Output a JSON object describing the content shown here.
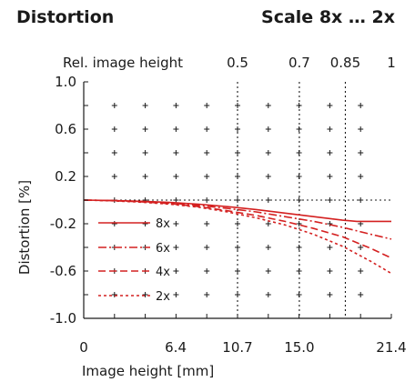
{
  "header": {
    "title": "Distortion",
    "scale": "Scale 8x … 2x"
  },
  "chart_data": {
    "type": "line",
    "title": "Distortion",
    "subtitle": "Scale 8x … 2x",
    "xlabel": "Image height [mm]",
    "ylabel": "Distortion [%]",
    "x2label": "Rel. image height",
    "xlim": [
      0,
      21.4
    ],
    "ylim": [
      -1.0,
      1.0
    ],
    "xticks": [
      0,
      6.4,
      10.7,
      15.0,
      21.4
    ],
    "xtick_labels": [
      "0",
      "6.4",
      "10.7",
      "15.0",
      "21.4"
    ],
    "yticks": [
      1.0,
      0.6,
      0.2,
      -0.2,
      -0.6,
      -1.0
    ],
    "ytick_labels": [
      "1.0",
      "0.6",
      "0.2",
      "-0.2",
      "-0.6",
      "-1.0"
    ],
    "x2ticks": [
      10.7,
      15.0,
      18.2,
      21.4
    ],
    "x2tick_labels": [
      "0.5",
      "0.7",
      "0.85",
      "1"
    ],
    "grid": "plus-markers",
    "legend_position": "bottom-left",
    "color": "#d42020",
    "series": [
      {
        "name": "8x",
        "dash": "solid",
        "x": [
          0,
          2,
          4,
          6,
          8,
          10,
          12,
          14,
          16,
          18,
          19,
          20,
          21.4
        ],
        "y": [
          0.0,
          -0.003,
          -0.01,
          -0.02,
          -0.035,
          -0.055,
          -0.08,
          -0.11,
          -0.14,
          -0.17,
          -0.18,
          -0.18,
          -0.18
        ]
      },
      {
        "name": "6x",
        "dash": "dashdot",
        "x": [
          0,
          2,
          4,
          6,
          8,
          10,
          12,
          14,
          16,
          18,
          20,
          21.4
        ],
        "y": [
          0.0,
          -0.004,
          -0.012,
          -0.025,
          -0.045,
          -0.07,
          -0.1,
          -0.14,
          -0.18,
          -0.23,
          -0.29,
          -0.33
        ]
      },
      {
        "name": "4x",
        "dash": "dashed",
        "x": [
          0,
          2,
          4,
          6,
          8,
          10,
          12,
          14,
          16,
          18,
          20,
          21.4
        ],
        "y": [
          0.0,
          -0.005,
          -0.015,
          -0.03,
          -0.055,
          -0.09,
          -0.13,
          -0.18,
          -0.24,
          -0.31,
          -0.41,
          -0.49
        ]
      },
      {
        "name": "2x",
        "dash": "dotted",
        "x": [
          0,
          2,
          4,
          6,
          8,
          10,
          12,
          14,
          16,
          18,
          20,
          21.4
        ],
        "y": [
          0.0,
          -0.006,
          -0.018,
          -0.035,
          -0.06,
          -0.1,
          -0.15,
          -0.21,
          -0.29,
          -0.39,
          -0.52,
          -0.62
        ]
      }
    ]
  }
}
